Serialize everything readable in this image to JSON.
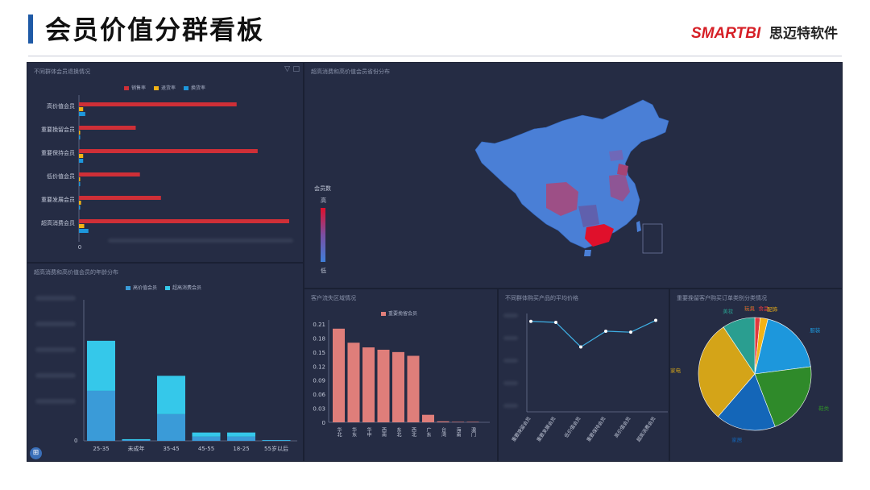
{
  "header": {
    "title": "会员价值分群看板",
    "brand_logo": "SMARTBI",
    "brand_name": "思迈特软件"
  },
  "colors": {
    "accent": "#1f5aa6",
    "brand_red": "#d61f26",
    "dashboard_bg": "#20263b",
    "panel_bg": "#252c44",
    "bar_red": "#cf2f37",
    "bar_yellow": "#f2b315",
    "bar_blue": "#1d97dc",
    "bar_salmon": "#df7e7a",
    "line_blue": "#3fb1e6"
  },
  "panels": {
    "churn": {
      "title": "不同群体会员退换情况",
      "legend": [
        "销售率",
        "退货率",
        "换货率"
      ],
      "axis_zero": "0"
    },
    "map": {
      "title": "超高消费和高价值会员省份分布",
      "scale_title": "会员数",
      "scale_high": "高",
      "scale_low": "低"
    },
    "age": {
      "title": "超高消费和高价值会员的年龄分布",
      "legend": [
        "高价值会员",
        "超高消费会员"
      ]
    },
    "region": {
      "title": "客户流失区域情况",
      "legend": [
        "重要挽留会员"
      ]
    },
    "price": {
      "title": "不同群体购买产品的平均价格"
    },
    "pie": {
      "title": "重要挽留客户购买订单类别分类情况"
    }
  },
  "chart_data": [
    {
      "type": "bar",
      "orientation": "horizontal",
      "categories": [
        "高价值会员",
        "重要挽留会员",
        "重要保持会员",
        "低价值会员",
        "重要发展会员",
        "超高消费会员"
      ],
      "series": [
        {
          "name": "销售率",
          "values": [
            0.75,
            0.27,
            0.85,
            0.29,
            0.39,
            1.0
          ]
        },
        {
          "name": "退货率",
          "values": [
            0.02,
            0.005,
            0.02,
            0.005,
            0.01,
            0.025
          ]
        },
        {
          "name": "换货率",
          "values": [
            0.03,
            0.005,
            0.02,
            0.005,
            0.005,
            0.045
          ]
        }
      ],
      "xlim": [
        0,
        1
      ]
    },
    {
      "type": "bar",
      "stacked": true,
      "categories": [
        "25-35",
        "未成年",
        "35-45",
        "45-55",
        "18-25",
        "55岁以后"
      ],
      "series": [
        {
          "name": "高价值会员",
          "values": [
            60,
            1,
            32,
            5,
            5,
            0.5
          ]
        },
        {
          "name": "超高消费会员",
          "values": [
            60,
            1,
            46,
            5,
            5,
            0.5
          ]
        }
      ],
      "ylim": [
        0,
        145
      ],
      "y_zero_label": "0"
    },
    {
      "type": "bar",
      "categories": [
        "",
        "",
        "",
        "",
        "",
        "",
        "广东",
        "台湾",
        "海南",
        "澳门"
      ],
      "category_labels_visible": [
        "华北",
        "华东",
        "华中",
        "西南",
        "东北",
        "西北",
        "广东",
        "台湾",
        "海南",
        "澳门"
      ],
      "series": [
        {
          "name": "重要挽留会员",
          "values": [
            0.2,
            0.17,
            0.16,
            0.155,
            0.15,
            0.142,
            0.016,
            0.002,
            0.001,
            0.001
          ]
        }
      ],
      "yticks": [
        "0",
        "0.03",
        "0.06",
        "0.09",
        "0.12",
        "0.15",
        "0.18",
        "0.21"
      ],
      "ylim": [
        0,
        0.21
      ]
    },
    {
      "type": "line",
      "categories": [
        "重要挽留会员",
        "重要发展会员",
        "低价值会员",
        "重要保持会员",
        "高价值会员",
        "超高消费会员"
      ],
      "series": [
        {
          "values": [
            0.92,
            0.91,
            0.66,
            0.82,
            0.81,
            0.93
          ]
        }
      ]
    },
    {
      "type": "pie",
      "labels": [
        "食品",
        "配饰",
        "服装",
        "鞋类",
        "家居",
        "家电",
        "美妆",
        "箱包",
        "玩具"
      ],
      "values": [
        1.5,
        2.2,
        19,
        21,
        17,
        29,
        9.3,
        0,
        0
      ],
      "colors": [
        "#e0393e",
        "#f2b315",
        "#1d97dc",
        "#2f8a2a",
        "#1466b8",
        "#d4a418",
        "#2a9e90",
        "#2f8a2a",
        "#e0393e"
      ]
    }
  ]
}
